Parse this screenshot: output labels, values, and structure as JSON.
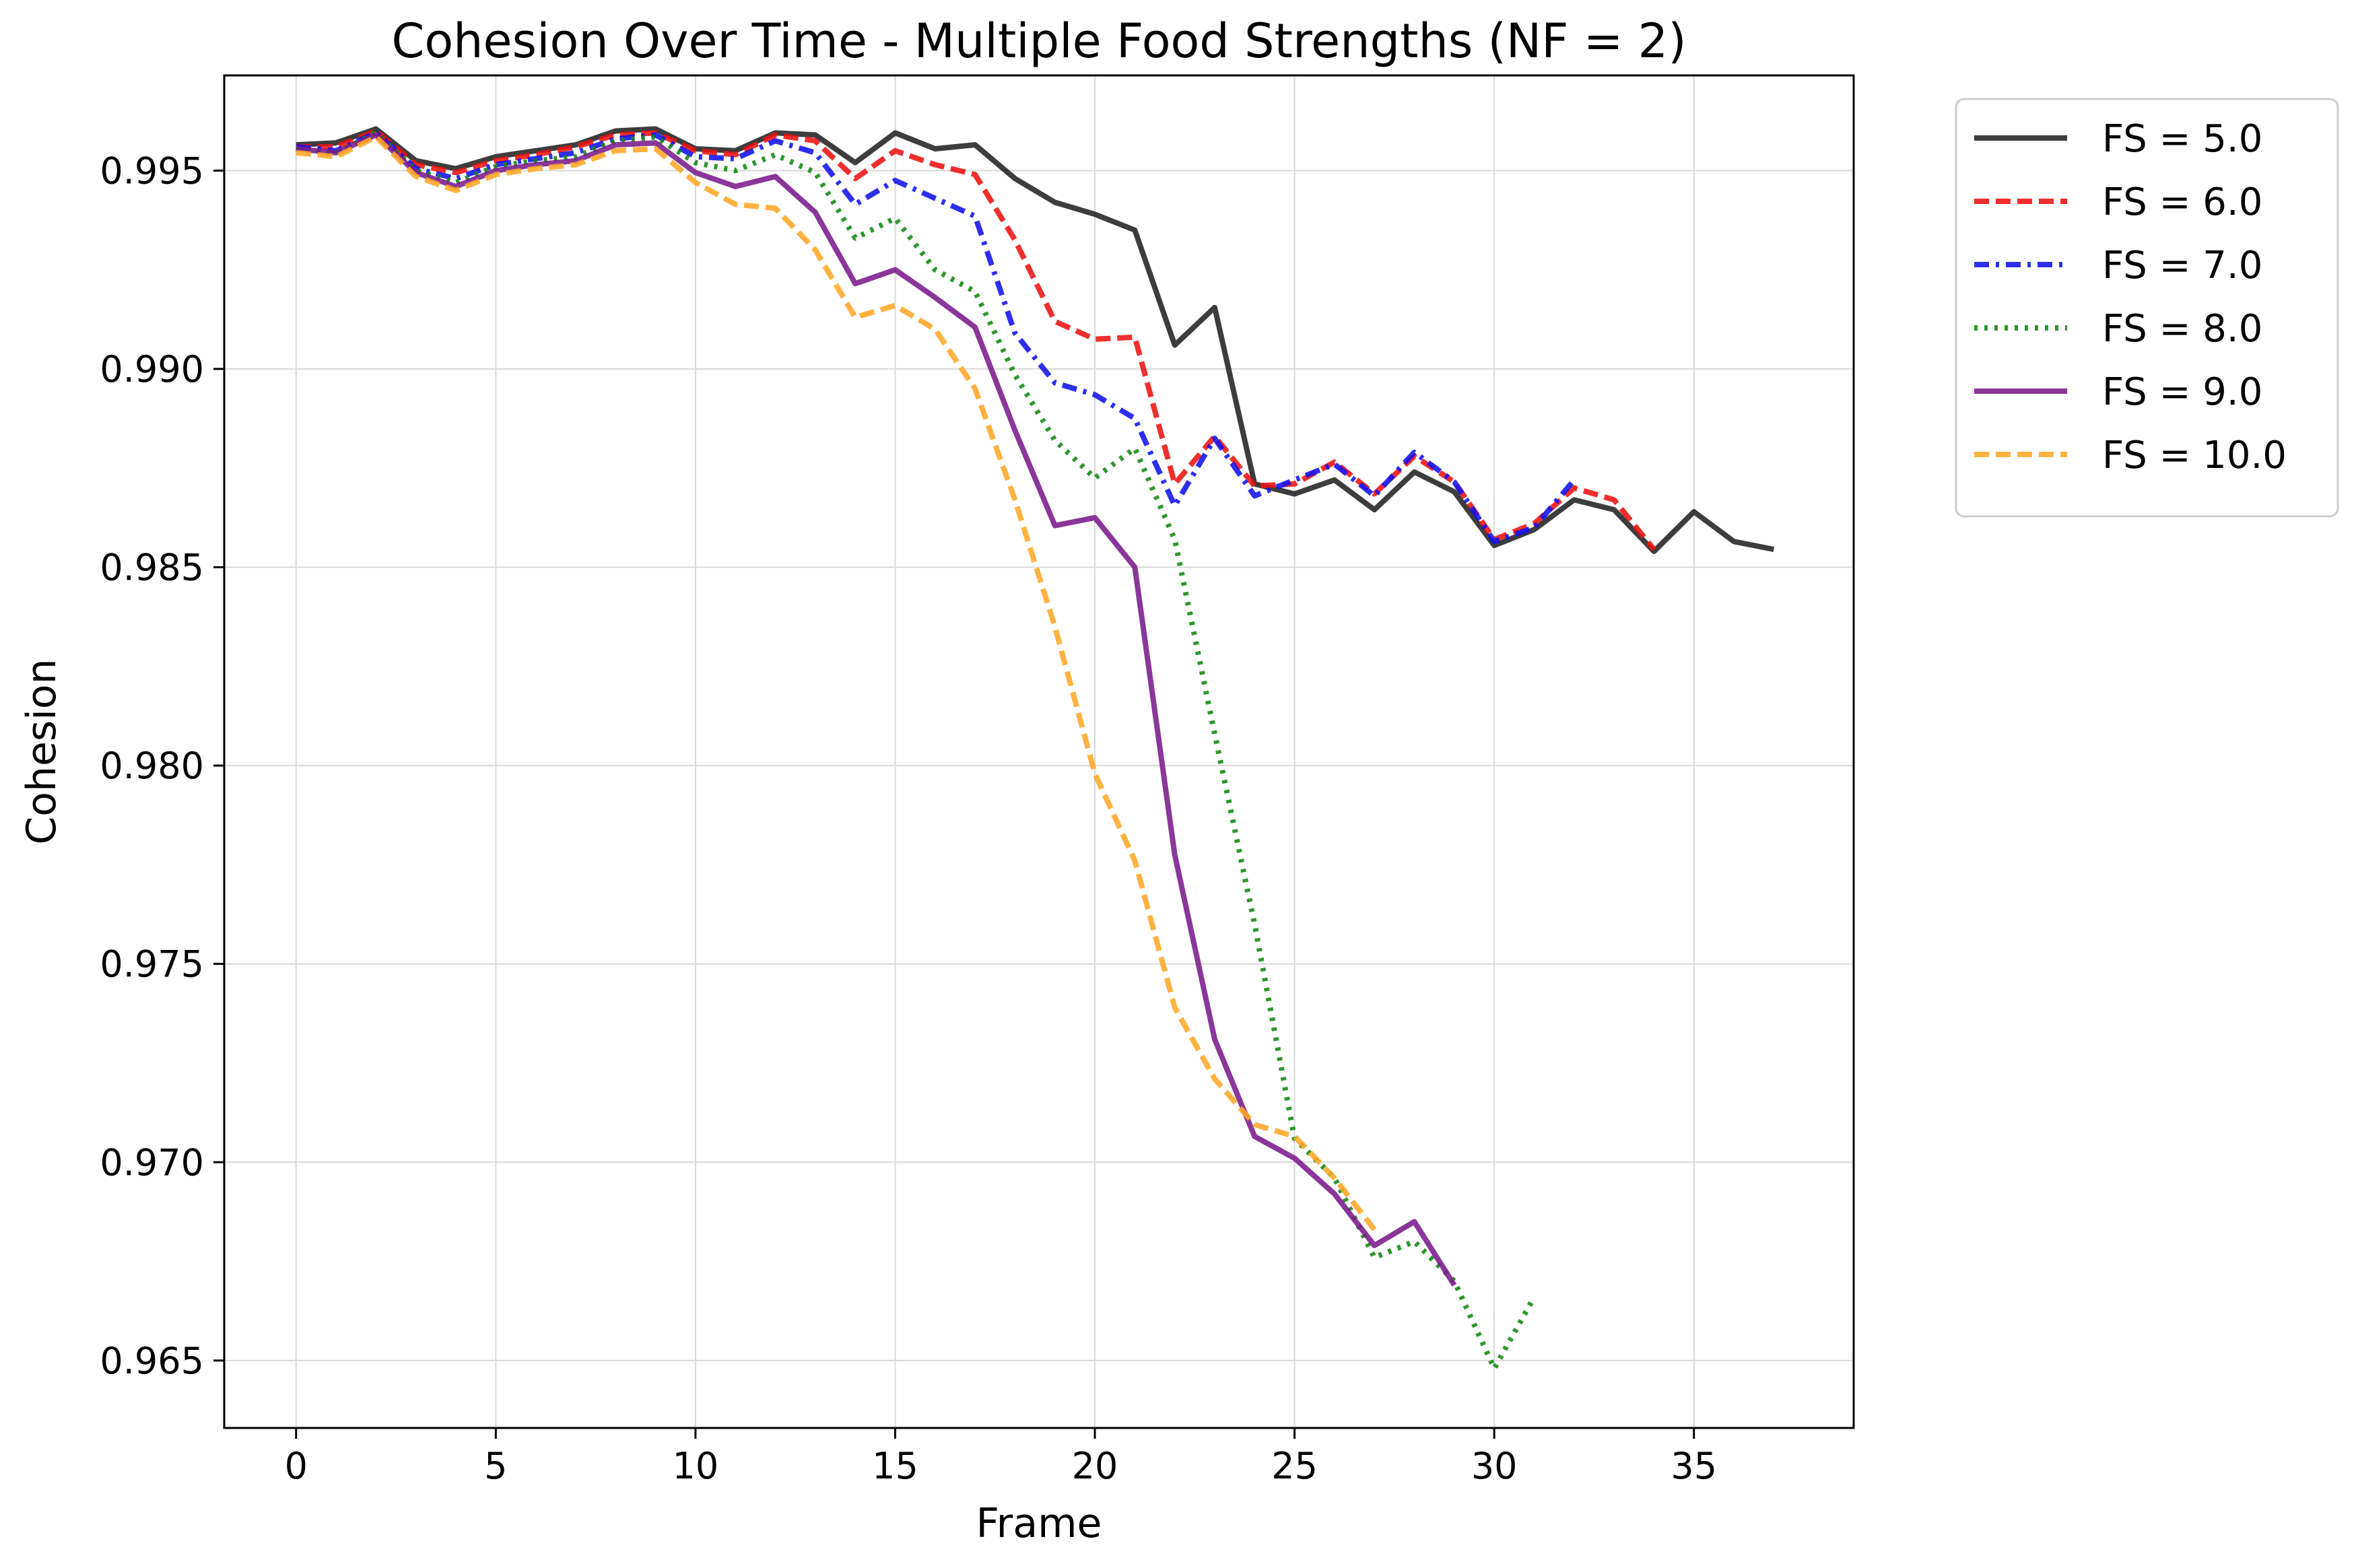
{
  "chart_data": {
    "type": "line",
    "title": "Cohesion Over Time - Multiple Food Strengths (NF = 2)",
    "xlabel": "Frame",
    "ylabel": "Cohesion",
    "xlim": [
      -1.8,
      39.0
    ],
    "ylim": [
      0.9633,
      0.9974
    ],
    "xticks": [
      0,
      5,
      10,
      15,
      20,
      25,
      30,
      35
    ],
    "yticks": [
      0.965,
      0.97,
      0.975,
      0.98,
      0.985,
      0.99,
      0.995
    ],
    "ytick_labels": [
      "0.965",
      "0.970",
      "0.975",
      "0.980",
      "0.985",
      "0.990",
      "0.995"
    ],
    "grid": true,
    "legend_position": "outside-top-right",
    "series": [
      {
        "name": "FS = 5.0",
        "color": "#222222",
        "dash": "solid",
        "x": [
          0,
          1,
          2,
          3,
          4,
          5,
          6,
          7,
          8,
          9,
          10,
          11,
          12,
          13,
          14,
          15,
          16,
          17,
          18,
          19,
          20,
          21,
          22,
          23,
          24,
          25,
          26,
          27,
          28,
          29,
          30,
          31,
          32,
          33,
          34,
          35,
          36,
          37
        ],
        "y": [
          0.99565,
          0.9957,
          0.99605,
          0.99525,
          0.99505,
          0.99535,
          0.9955,
          0.99565,
          0.996,
          0.99605,
          0.99555,
          0.9955,
          0.99595,
          0.9959,
          0.9952,
          0.99595,
          0.99555,
          0.99565,
          0.9948,
          0.9942,
          0.9939,
          0.9935,
          0.9906,
          0.99155,
          0.9871,
          0.98685,
          0.9872,
          0.98645,
          0.9874,
          0.9869,
          0.98555,
          0.98595,
          0.9867,
          0.98645,
          0.9854,
          0.9864,
          0.98565,
          0.98545
        ]
      },
      {
        "name": "FS = 6.0",
        "color": "#ee1111",
        "dash": "dashed",
        "x": [
          0,
          1,
          2,
          3,
          4,
          5,
          6,
          7,
          8,
          9,
          10,
          11,
          12,
          13,
          14,
          15,
          16,
          17,
          18,
          19,
          20,
          21,
          22,
          23,
          24,
          25,
          26,
          27,
          28,
          29,
          30,
          31,
          32,
          33,
          34
        ],
        "y": [
          0.9956,
          0.9956,
          0.996,
          0.99515,
          0.99495,
          0.99525,
          0.9954,
          0.9956,
          0.9959,
          0.99595,
          0.9955,
          0.9954,
          0.9959,
          0.99575,
          0.9948,
          0.9955,
          0.99515,
          0.9949,
          0.99325,
          0.9912,
          0.99075,
          0.9908,
          0.9871,
          0.9883,
          0.98705,
          0.9871,
          0.98765,
          0.98685,
          0.9878,
          0.98715,
          0.9857,
          0.9861,
          0.987,
          0.9867,
          0.98545
        ]
      },
      {
        "name": "FS = 7.0",
        "color": "#1111ee",
        "dash": "dashdot",
        "x": [
          0,
          1,
          2,
          3,
          4,
          5,
          6,
          7,
          8,
          9,
          10,
          11,
          12,
          13,
          14,
          15,
          16,
          17,
          18,
          19,
          20,
          21,
          22,
          23,
          24,
          25,
          26,
          27,
          28,
          29,
          30,
          31,
          32
        ],
        "y": [
          0.9956,
          0.9955,
          0.99595,
          0.99505,
          0.9948,
          0.99515,
          0.9953,
          0.99545,
          0.9958,
          0.9959,
          0.99535,
          0.9953,
          0.99575,
          0.99545,
          0.99415,
          0.99475,
          0.9943,
          0.99385,
          0.9909,
          0.98965,
          0.98935,
          0.98875,
          0.98655,
          0.98825,
          0.9868,
          0.9872,
          0.9876,
          0.9868,
          0.9879,
          0.98715,
          0.98565,
          0.986,
          0.9872
        ]
      },
      {
        "name": "FS = 8.0",
        "color": "#118811",
        "dash": "dotted",
        "x": [
          0,
          1,
          2,
          3,
          4,
          5,
          6,
          7,
          8,
          9,
          10,
          11,
          12,
          13,
          14,
          15,
          16,
          17,
          18,
          19,
          20,
          21,
          22,
          23,
          24,
          25,
          26,
          27,
          28,
          29,
          30,
          31
        ],
        "y": [
          0.99555,
          0.99545,
          0.99595,
          0.995,
          0.9947,
          0.9951,
          0.99525,
          0.99535,
          0.99575,
          0.99585,
          0.9952,
          0.995,
          0.9954,
          0.99495,
          0.9933,
          0.9938,
          0.9925,
          0.99195,
          0.98985,
          0.9882,
          0.98725,
          0.988,
          0.9857,
          0.9808,
          0.976,
          0.9706,
          0.9696,
          0.9676,
          0.968,
          0.967,
          0.9648,
          0.9666
        ]
      },
      {
        "name": "FS = 9.0",
        "color": "#7a1a8c",
        "dash": "solid",
        "x": [
          0,
          1,
          2,
          3,
          4,
          5,
          6,
          7,
          8,
          9,
          10,
          11,
          12,
          13,
          14,
          15,
          16,
          17,
          18,
          19,
          20,
          21,
          22,
          23,
          24,
          25,
          26,
          27,
          28,
          29
        ],
        "y": [
          0.99555,
          0.99545,
          0.9959,
          0.99495,
          0.9946,
          0.995,
          0.99515,
          0.99525,
          0.99565,
          0.9957,
          0.99495,
          0.9946,
          0.99485,
          0.99395,
          0.99215,
          0.9925,
          0.9918,
          0.99105,
          0.98845,
          0.98605,
          0.98625,
          0.985,
          0.97775,
          0.9731,
          0.97065,
          0.9701,
          0.9692,
          0.9679,
          0.9685,
          0.9669
        ]
      },
      {
        "name": "FS = 10.0",
        "color": "#ffa726",
        "dash": "dashed",
        "x": [
          0,
          1,
          2,
          3,
          4,
          5,
          6,
          7,
          8,
          9,
          10,
          11,
          12,
          13,
          14,
          15,
          16,
          17,
          18,
          19,
          20,
          21,
          22,
          23,
          24,
          25,
          26,
          27
        ],
        "y": [
          0.99545,
          0.99535,
          0.99585,
          0.99485,
          0.9945,
          0.9949,
          0.99505,
          0.99515,
          0.9955,
          0.99555,
          0.9947,
          0.99415,
          0.99405,
          0.993,
          0.9913,
          0.9916,
          0.991,
          0.9895,
          0.9867,
          0.9835,
          0.9798,
          0.9776,
          0.9739,
          0.9721,
          0.97095,
          0.97065,
          0.9696,
          0.9683
        ]
      }
    ]
  }
}
